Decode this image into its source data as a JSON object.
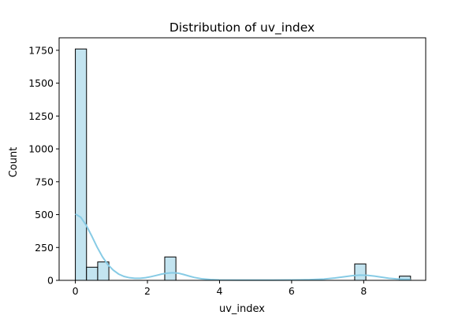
{
  "chart_data": {
    "type": "bar",
    "title": "Distribution of uv_index",
    "xlabel": "uv_index",
    "ylabel": "Count",
    "xlim": [
      -0.45,
      9.72
    ],
    "ylim": [
      0,
      1845
    ],
    "x_ticks": [
      0,
      2,
      4,
      6,
      8
    ],
    "y_ticks": [
      0,
      250,
      500,
      750,
      1000,
      1250,
      1500,
      1750
    ],
    "bin_width": 0.31,
    "bins": [
      {
        "x0": 0.0,
        "x1": 0.31,
        "count": 1760
      },
      {
        "x0": 0.31,
        "x1": 0.62,
        "count": 100
      },
      {
        "x0": 0.62,
        "x1": 0.93,
        "count": 140
      },
      {
        "x0": 2.48,
        "x1": 2.79,
        "count": 178
      },
      {
        "x0": 7.75,
        "x1": 8.06,
        "count": 125
      },
      {
        "x0": 8.99,
        "x1": 9.3,
        "count": 32
      }
    ],
    "kde": {
      "x": [
        0.0,
        0.15,
        0.3,
        0.45,
        0.6,
        0.75,
        0.9,
        1.05,
        1.2,
        1.35,
        1.5,
        1.65,
        1.8,
        1.95,
        2.1,
        2.25,
        2.4,
        2.55,
        2.7,
        2.85,
        3.0,
        3.15,
        3.3,
        3.5,
        3.75,
        4.0,
        4.5,
        5.0,
        5.5,
        6.0,
        6.5,
        6.9,
        7.2,
        7.45,
        7.7,
        7.9,
        8.1,
        8.3,
        8.5,
        8.7,
        8.9,
        9.1,
        9.3
      ],
      "y": [
        505,
        480,
        420,
        340,
        255,
        180,
        120,
        78,
        48,
        30,
        20,
        16,
        16,
        20,
        28,
        38,
        48,
        55,
        58,
        55,
        45,
        33,
        22,
        12,
        6,
        3,
        2,
        2,
        2,
        3,
        5,
        10,
        18,
        27,
        36,
        40,
        38,
        32,
        24,
        16,
        11,
        8,
        7
      ]
    },
    "colors": {
      "bar_fill": "#c3e4f0",
      "bar_edge": "#000000",
      "kde_line": "#87cbe5"
    },
    "grid": false,
    "legend": "none"
  }
}
